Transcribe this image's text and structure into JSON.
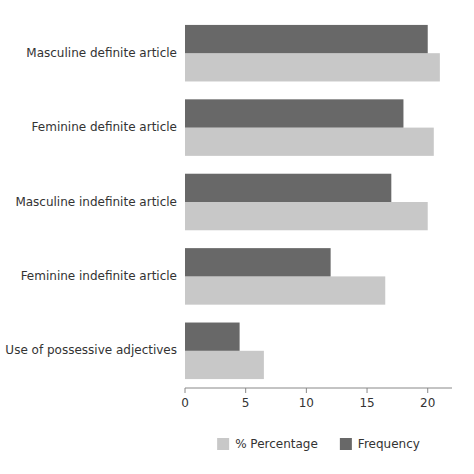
{
  "chart_data": {
    "type": "bar",
    "orientation": "horizontal",
    "categories": [
      "Masculine definite article",
      "Feminine definite article",
      "Masculine indefinite article",
      "Feminine indefinite article",
      "Use of possessive adjectives"
    ],
    "series": [
      {
        "name": "% Percentage",
        "color": "#c8c8c8",
        "values": [
          21,
          20.5,
          20,
          16.5,
          6.5
        ]
      },
      {
        "name": "Frequency",
        "color": "#686868",
        "values": [
          20,
          18,
          17,
          12,
          4.5
        ]
      }
    ],
    "xlim": [
      0,
      22
    ],
    "xticks": [
      0,
      5,
      10,
      15,
      20
    ],
    "grid": false,
    "legend": "bottom"
  }
}
